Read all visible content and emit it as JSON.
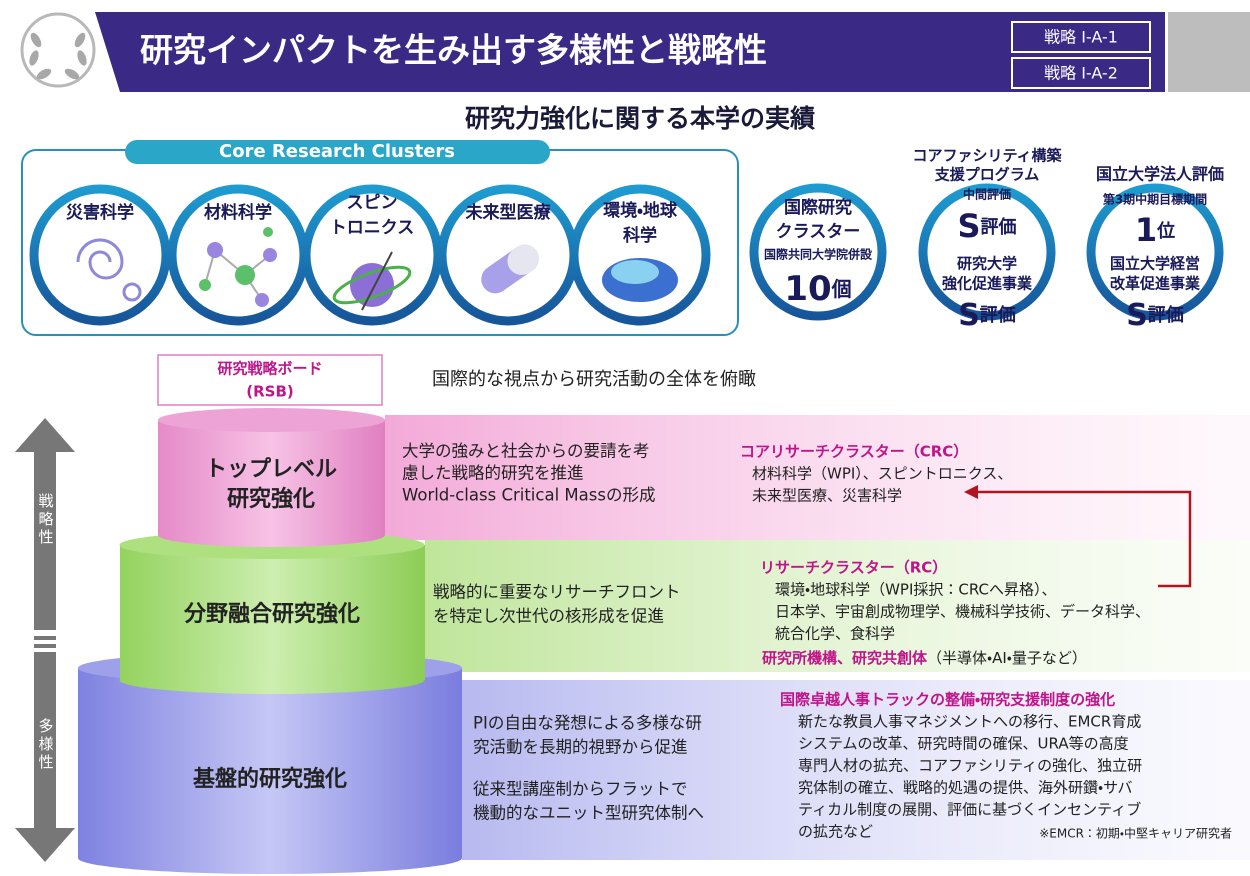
{
  "header": {
    "title": "研究インパクトを生み出す多様性と戦略性",
    "badges": [
      "戦略 I-A-1",
      "戦略 I-A-2"
    ]
  },
  "subtitle": "研究力強化に関する本学の実績",
  "clusters": {
    "label": "Core Research Clusters",
    "items": [
      [
        "災害科学"
      ],
      [
        "材料科学"
      ],
      [
        "スピン",
        "トロニクス"
      ],
      [
        "未来型医療"
      ],
      [
        "環境・地球",
        "科学"
      ]
    ]
  },
  "achievements": [
    {
      "heading": [],
      "lines": [
        "国際研究",
        "クラスター",
        "国際共同大学院併設",
        "10",
        "個"
      ]
    },
    {
      "heading": [
        "コアファシリティ構築",
        "支援プログラム"
      ],
      "lines": [
        "中間評価",
        "S",
        "評価",
        "研究大学",
        "強化促進事業",
        "S",
        "評価"
      ]
    },
    {
      "heading": [
        "国立大学法人評価"
      ],
      "lines": [
        "第3期中期目標期間",
        "1",
        "位",
        "国立大学経営",
        "改革促進事業",
        "S",
        "評価"
      ]
    }
  ],
  "rsb": {
    "title": "研究戦略ボード",
    "abbr": "(RSB)",
    "caption": "国際的な視点から研究活動の全体を俯瞰"
  },
  "axis": {
    "top": "戦略性",
    "bottom": "多様性"
  },
  "tiers": [
    {
      "name": [
        "トップレベル",
        "研究強化"
      ],
      "description": [
        "大学の強みと社会からの要請を考",
        "慮した戦略的研究を推進",
        "World-class Critical Massの形成"
      ],
      "details": [
        {
          "heading": "コアリサーチクラスター（CRC）",
          "lines": [
            "材料科学（WPI）、スピントロニクス、",
            "未来型医療、災害科学"
          ]
        }
      ]
    },
    {
      "name": [
        "分野融合研究強化"
      ],
      "description": [
        "戦略的に重要なリサーチフロント",
        "を特定し次世代の核形成を促進"
      ],
      "details": [
        {
          "heading": "リサーチクラスター（RC）",
          "lines": [
            "環境・地球科学（WPI採択：CRCへ昇格）、",
            "日本学、宇宙創成物理学、機械科学技術、データ科学、",
            "統合化学、食科学"
          ]
        },
        {
          "heading": "研究所機構、研究共創体",
          "note": "（半導体・AI・量子など）"
        }
      ]
    },
    {
      "name": [
        "基盤的研究強化"
      ],
      "description": [
        "PIの自由な発想による多様な研",
        "究活動を長期的視野から促進",
        "従来型講座制からフラットで",
        "機動的なユニット型研究体制へ"
      ],
      "details": [
        {
          "heading": "国際卓越人事トラックの整備・研究支援制度の強化",
          "lines": [
            "新たな教員人事マネジメントへの移行、EMCR育成",
            "システムの改革、研究時間の確保、URA等の高度",
            "専門人材の拡充、コアファシリティの強化、独立研",
            "究体制の確立、戦略的処遇の提供、海外研鑽・サバ",
            "ティカル制度の展開、評価に基づくインセンティブ",
            "の拡充など"
          ],
          "footnote": "※EMCR：初期・中堅キャリア研究者"
        }
      ]
    }
  ]
}
